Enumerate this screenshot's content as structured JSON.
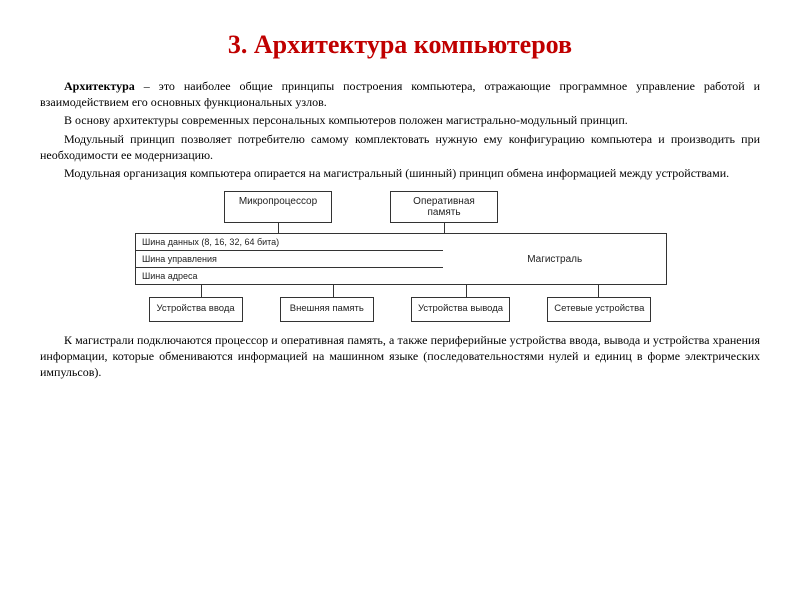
{
  "colors": {
    "title": "#c00000",
    "text": "#000000",
    "border": "#333333",
    "background": "#ffffff"
  },
  "title": "3. Архитектура компьютеров",
  "paragraphs": {
    "p1_lead": "Архитектура",
    "p1_rest": " – это наиболее общие принципы построения компьютера, отражающие программное управление работой и взаимодействием его основных функциональных узлов.",
    "p2": "В основу архитектуры современных персональных компьютеров положен магистрально-модульный принцип.",
    "p3": "Модульный принцип позволяет потребителю самому комплектовать нужную ему конфигурацию компьютера и производить при необходимости ее модернизацию.",
    "p4": "Модульная организация компьютера опирается на магистральный (шинный) принцип обмена информацией между устройствами.",
    "p5": "К магистрали подключаются процессор и оперативная память, а также периферийные устройства ввода, вывода и устройства хранения информации, которые обмениваются информацией на машинном языке (последовательностями нулей и единиц в форме электрических импульсов)."
  },
  "diagram": {
    "type": "flowchart",
    "top_nodes": [
      "Микропроцессор",
      "Оперативная память"
    ],
    "bus": {
      "lanes": [
        "Шина данных (8, 16, 32, 64 бита)",
        "Шина управления",
        "Шина адреса"
      ],
      "label": "Магистраль"
    },
    "bottom_nodes": [
      "Устройства ввода",
      "Внешняя память",
      "Устройства вывода",
      "Сетевые устройства"
    ],
    "node_border_color": "#333333",
    "node_bg": "#ffffff",
    "font_family": "Arial",
    "font_size_pt": 8
  }
}
